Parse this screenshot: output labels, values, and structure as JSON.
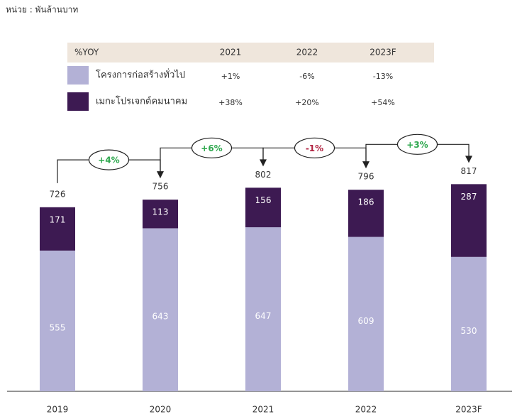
{
  "chart_data": {
    "type": "bar",
    "stacked": true,
    "unit_note": "หน่วย : พันล้านบาท",
    "categories": [
      "2019",
      "2020",
      "2021",
      "2022",
      "2023F"
    ],
    "series": [
      {
        "name": "โครงการก่อสร้างทั่วไป",
        "color": "#b3b1d6",
        "values": [
          555,
          643,
          647,
          609,
          530
        ],
        "yoy": [
          "+1%",
          "-6%",
          "-13%"
        ]
      },
      {
        "name": "เมกะโปรเจกต์คมนาคม",
        "color": "#3d1a52",
        "values": [
          171,
          113,
          156,
          186,
          287
        ],
        "yoy": [
          "+38%",
          "+20%",
          "+54%"
        ]
      }
    ],
    "totals": [
      726,
      756,
      802,
      796,
      817
    ],
    "yoy_header": "%YOY",
    "yoy_columns": [
      "2021",
      "2022",
      "2023F"
    ],
    "growth": [
      {
        "text": "+4%",
        "color": "#2fa84f"
      },
      {
        "text": "+6%",
        "color": "#2fa84f"
      },
      {
        "text": "-1%",
        "color": "#b0213f"
      },
      {
        "text": "+3%",
        "color": "#2fa84f"
      }
    ]
  }
}
